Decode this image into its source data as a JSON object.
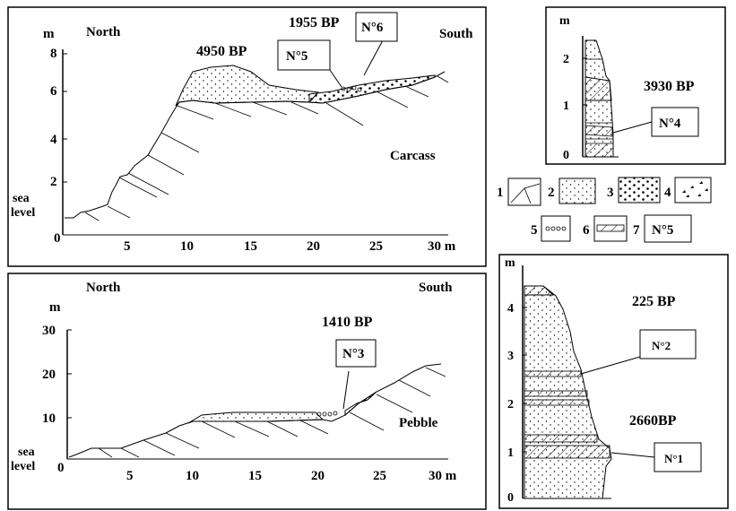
{
  "panel1": {
    "y_unit": "m",
    "north": "North",
    "south": "South",
    "y_ticks": [
      "8",
      "6",
      "4",
      "2"
    ],
    "zero": "0",
    "sea": "sea",
    "level": "level",
    "x_ticks": [
      "5",
      "10",
      "15",
      "20",
      "25"
    ],
    "x_last": "30 m",
    "age_a": "4950 BP",
    "age_b": "1955 BP",
    "label_a": "N°5",
    "label_b": "N°6",
    "note": "Carcass"
  },
  "panel2": {
    "y_unit": "m",
    "north": "North",
    "south": "South",
    "y_ticks": [
      "30",
      "20",
      "10"
    ],
    "zero": "0",
    "sea": "sea",
    "level": "level",
    "x_ticks": [
      "5",
      "10",
      "15",
      "20",
      "25"
    ],
    "x_last": "30 m",
    "age": "1410 BP",
    "label": "N°3",
    "note": "Pebble"
  },
  "panel3": {
    "y_unit": "m",
    "y_ticks": [
      "2",
      "1",
      "0"
    ],
    "age": "3930 BP",
    "label": "N°4"
  },
  "legend": {
    "items": [
      "1",
      "2",
      "3",
      "4",
      "5",
      "6",
      "7"
    ],
    "sample_label": "N°5"
  },
  "panel4": {
    "y_unit": "m",
    "y_ticks": [
      "4",
      "3",
      "2",
      "1",
      "0"
    ],
    "age_top": "225 BP",
    "age_bottom": "2660BP",
    "label_top": "N°2",
    "label_bottom": "N°1"
  }
}
